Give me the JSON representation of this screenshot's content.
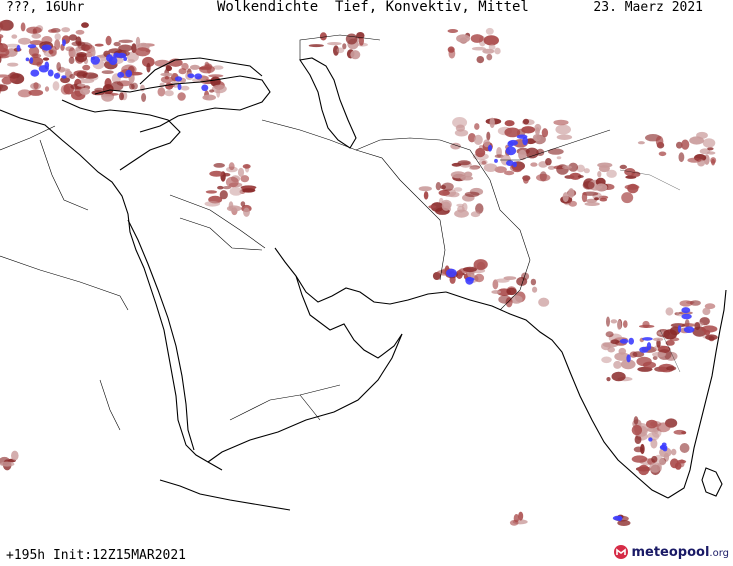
{
  "header": {
    "left": "???, 16Uhr",
    "center": "Wolkendichte  Tief, Konvektiv, Mittel",
    "right": "23. Maerz 2021"
  },
  "footer": {
    "left": "+195h Init:12Z15MAR2021",
    "logo_name": "meteopool",
    "logo_tld": ".org"
  },
  "legend_colors": {
    "cloud_low": "#c99a9a",
    "cloud_mid": "#a84848",
    "cloud_dense": "#8a2a2a",
    "convective": "#3d3dff"
  },
  "icons": [
    "logo-mark-icon"
  ]
}
